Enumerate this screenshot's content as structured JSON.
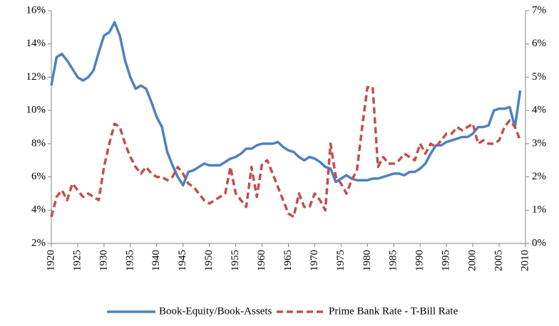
{
  "chart_data": {
    "type": "line",
    "x": [
      1920,
      1921,
      1922,
      1923,
      1924,
      1925,
      1926,
      1927,
      1928,
      1929,
      1930,
      1931,
      1932,
      1933,
      1934,
      1935,
      1936,
      1937,
      1938,
      1939,
      1940,
      1941,
      1942,
      1943,
      1944,
      1945,
      1946,
      1947,
      1948,
      1949,
      1950,
      1951,
      1952,
      1953,
      1954,
      1955,
      1956,
      1957,
      1958,
      1959,
      1960,
      1961,
      1962,
      1963,
      1964,
      1965,
      1966,
      1967,
      1968,
      1969,
      1970,
      1971,
      1972,
      1973,
      1974,
      1975,
      1976,
      1977,
      1978,
      1979,
      1980,
      1981,
      1982,
      1983,
      1984,
      1985,
      1986,
      1987,
      1988,
      1989,
      1990,
      1991,
      1992,
      1993,
      1994,
      1995,
      1996,
      1997,
      1998,
      1999,
      2000,
      2001,
      2002,
      2003,
      2004,
      2005,
      2006,
      2007,
      2008,
      2009
    ],
    "series": [
      {
        "name": "Book-Equity/Book-Assets",
        "color": "#4f81bd",
        "dash": "solid",
        "axis": "y",
        "values": [
          11.5,
          13.2,
          13.4,
          13.0,
          12.5,
          12.0,
          11.8,
          12.0,
          12.4,
          13.5,
          14.5,
          14.7,
          15.3,
          14.5,
          13.0,
          12.0,
          11.3,
          11.5,
          11.3,
          10.5,
          9.6,
          9.0,
          7.5,
          6.7,
          6.0,
          5.5,
          6.3,
          6.4,
          6.6,
          6.8,
          6.7,
          6.7,
          6.7,
          6.9,
          7.1,
          7.2,
          7.4,
          7.7,
          7.7,
          7.9,
          8.0,
          8.0,
          8.0,
          8.1,
          7.8,
          7.6,
          7.5,
          7.2,
          7.0,
          7.2,
          7.1,
          6.9,
          6.6,
          6.5,
          5.7,
          5.9,
          6.1,
          5.9,
          5.8,
          5.8,
          5.8,
          5.9,
          5.9,
          6.0,
          6.1,
          6.2,
          6.2,
          6.1,
          6.3,
          6.3,
          6.5,
          6.8,
          7.4,
          7.9,
          7.9,
          8.1,
          8.2,
          8.3,
          8.4,
          8.4,
          8.6,
          9.0,
          9.0,
          9.1,
          10.0,
          10.1,
          10.1,
          10.2,
          9.0,
          11.2
        ]
      },
      {
        "name": "Prime Bank Rate - T-Bill Rate",
        "color": "#c0504d",
        "dash": "dashed",
        "axis": "y2",
        "values": [
          0.8,
          1.4,
          1.6,
          1.3,
          1.8,
          1.6,
          1.4,
          1.5,
          1.4,
          1.3,
          2.3,
          3.0,
          3.6,
          3.5,
          3.0,
          2.6,
          2.3,
          2.1,
          2.3,
          2.1,
          2.0,
          2.0,
          1.9,
          2.0,
          2.3,
          2.1,
          1.8,
          1.7,
          1.5,
          1.3,
          1.2,
          1.3,
          1.4,
          1.5,
          2.3,
          1.5,
          1.3,
          1.1,
          2.3,
          1.4,
          2.4,
          2.5,
          2.1,
          1.7,
          1.3,
          0.9,
          0.8,
          1.5,
          1.1,
          1.1,
          1.5,
          1.3,
          1.0,
          3.0,
          2.0,
          1.8,
          1.5,
          1.9,
          2.2,
          3.5,
          4.7,
          4.7,
          2.3,
          2.6,
          2.4,
          2.4,
          2.5,
          2.7,
          2.6,
          2.5,
          3.0,
          2.7,
          3.0,
          2.9,
          3.1,
          3.3,
          3.3,
          3.5,
          3.4,
          3.5,
          3.6,
          3.0,
          3.1,
          3.0,
          3.0,
          3.1,
          3.5,
          3.7,
          3.5,
          3.1
        ]
      }
    ],
    "xlim": [
      1920,
      2010
    ],
    "xticks": [
      1920,
      1925,
      1930,
      1935,
      1940,
      1945,
      1950,
      1955,
      1960,
      1965,
      1970,
      1975,
      1980,
      1985,
      1990,
      1995,
      2000,
      2005,
      2010
    ],
    "ylim": [
      2,
      16
    ],
    "yticks": [
      {
        "value": 2,
        "label": "2%"
      },
      {
        "value": 4,
        "label": "4%"
      },
      {
        "value": 6,
        "label": "6%"
      },
      {
        "value": 8,
        "label": "8%"
      },
      {
        "value": 10,
        "label": "10%"
      },
      {
        "value": 12,
        "label": "12%"
      },
      {
        "value": 14,
        "label": "14%"
      },
      {
        "value": 16,
        "label": "16%"
      }
    ],
    "y2lim": [
      0,
      7
    ],
    "y2ticks": [
      {
        "value": 0,
        "label": "0%"
      },
      {
        "value": 1,
        "label": "1%"
      },
      {
        "value": 2,
        "label": "2%"
      },
      {
        "value": 3,
        "label": "3%"
      },
      {
        "value": 4,
        "label": "4%"
      },
      {
        "value": 5,
        "label": "5%"
      },
      {
        "value": 6,
        "label": "6%"
      },
      {
        "value": 7,
        "label": "7%"
      }
    ],
    "grid": false,
    "legend": "bottom"
  }
}
